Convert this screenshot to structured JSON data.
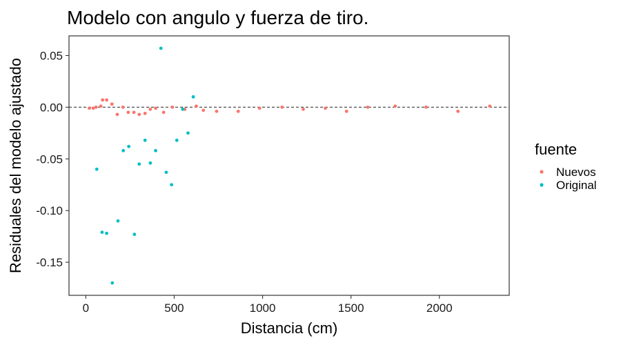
{
  "chart_data": {
    "type": "scatter",
    "title": "Modelo con angulo y fuerza de tiro.",
    "xlabel": "Distancia (cm)",
    "ylabel": "Residuales del modelo ajustado",
    "xlim": [
      -95,
      2395
    ],
    "ylim": [
      -0.182,
      0.069
    ],
    "x_ticks": [
      0,
      500,
      1000,
      1500,
      2000
    ],
    "x_tick_labels": [
      "0",
      "500",
      "1000",
      "1500",
      "2000"
    ],
    "y_ticks": [
      0.05,
      0.0,
      -0.05,
      -0.1,
      -0.15
    ],
    "y_tick_labels": [
      "0.05",
      "0.00",
      "-0.05",
      "-0.10",
      "-0.15"
    ],
    "reference_line": {
      "y": 0,
      "style": "dashed",
      "color": "#4d4d4d"
    },
    "grid": false,
    "legend": {
      "title": "fuente",
      "position": "right",
      "entries": [
        {
          "label": "Nuevos",
          "color": "#F8766D"
        },
        {
          "label": "Original",
          "color": "#00BFC4"
        }
      ]
    },
    "series": [
      {
        "name": "Nuevos",
        "color": "#F8766D",
        "points": [
          [
            20,
            -0.001
          ],
          [
            42,
            -0.001
          ],
          [
            58,
            0.0
          ],
          [
            85,
            0.001
          ],
          [
            95,
            0.007
          ],
          [
            118,
            0.007
          ],
          [
            148,
            0.003
          ],
          [
            178,
            -0.007
          ],
          [
            210,
            0.0
          ],
          [
            240,
            -0.005
          ],
          [
            272,
            -0.005
          ],
          [
            302,
            -0.007
          ],
          [
            335,
            -0.006
          ],
          [
            365,
            -0.002
          ],
          [
            395,
            -0.001
          ],
          [
            440,
            -0.005
          ],
          [
            490,
            0.0
          ],
          [
            560,
            -0.002
          ],
          [
            625,
            0.001
          ],
          [
            665,
            -0.003
          ],
          [
            740,
            -0.004
          ],
          [
            862,
            -0.004
          ],
          [
            983,
            -0.001
          ],
          [
            1110,
            0.0
          ],
          [
            1230,
            -0.002
          ],
          [
            1355,
            -0.001
          ],
          [
            1475,
            -0.004
          ],
          [
            1595,
            0.0
          ],
          [
            1750,
            0.001
          ],
          [
            1925,
            0.0
          ],
          [
            2105,
            -0.004
          ],
          [
            2285,
            0.001
          ]
        ]
      },
      {
        "name": "Original",
        "color": "#00BFC4",
        "points": [
          [
            62,
            -0.06
          ],
          [
            92,
            -0.121
          ],
          [
            118,
            -0.122
          ],
          [
            150,
            -0.17
          ],
          [
            182,
            -0.11
          ],
          [
            212,
            -0.042
          ],
          [
            243,
            -0.038
          ],
          [
            275,
            -0.123
          ],
          [
            302,
            -0.055
          ],
          [
            335,
            -0.032
          ],
          [
            365,
            -0.054
          ],
          [
            395,
            -0.042
          ],
          [
            425,
            0.057
          ],
          [
            455,
            -0.063
          ],
          [
            485,
            -0.075
          ],
          [
            515,
            -0.032
          ],
          [
            548,
            -0.002
          ],
          [
            578,
            -0.025
          ],
          [
            608,
            0.01
          ]
        ]
      }
    ]
  }
}
